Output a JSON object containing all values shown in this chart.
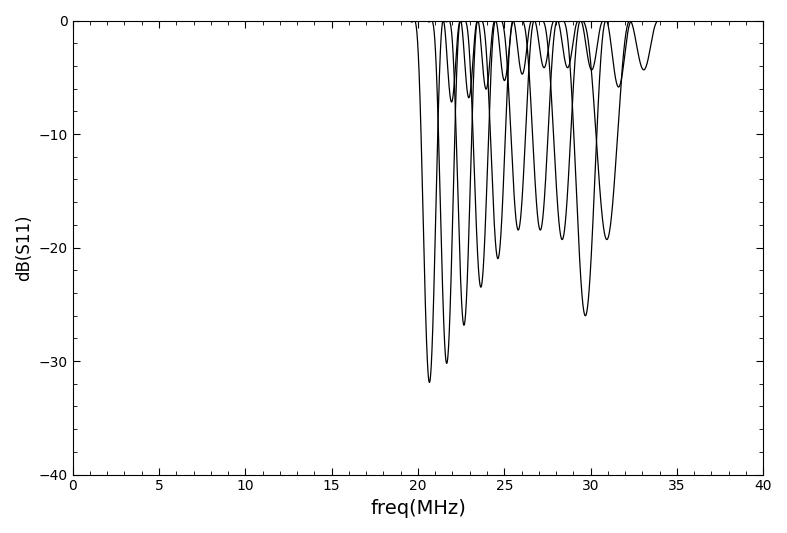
{
  "title": "",
  "xlabel": "freq(MHz)",
  "ylabel": "dB(S11)",
  "xlim": [
    0,
    40
  ],
  "ylim": [
    -40,
    0
  ],
  "xticks": [
    0,
    5,
    10,
    15,
    20,
    25,
    30,
    35,
    40
  ],
  "yticks": [
    0,
    -10,
    -20,
    -30,
    -40
  ],
  "background_color": "#ffffff",
  "line_color": "#000000",
  "line_width": 0.9,
  "num_curves": 10,
  "center_freqs": [
    21.0,
    22.0,
    23.0,
    24.0,
    25.0,
    26.2,
    27.5,
    28.8,
    30.2,
    31.5
  ],
  "bandwidths": [
    3.0,
    3.0,
    3.0,
    3.2,
    3.3,
    3.5,
    3.7,
    4.0,
    4.5,
    5.0
  ],
  "min_depths": [
    -38,
    -36,
    -32,
    -28,
    -25,
    -22,
    -22,
    -23,
    -31,
    -23
  ],
  "n_poles": 5
}
